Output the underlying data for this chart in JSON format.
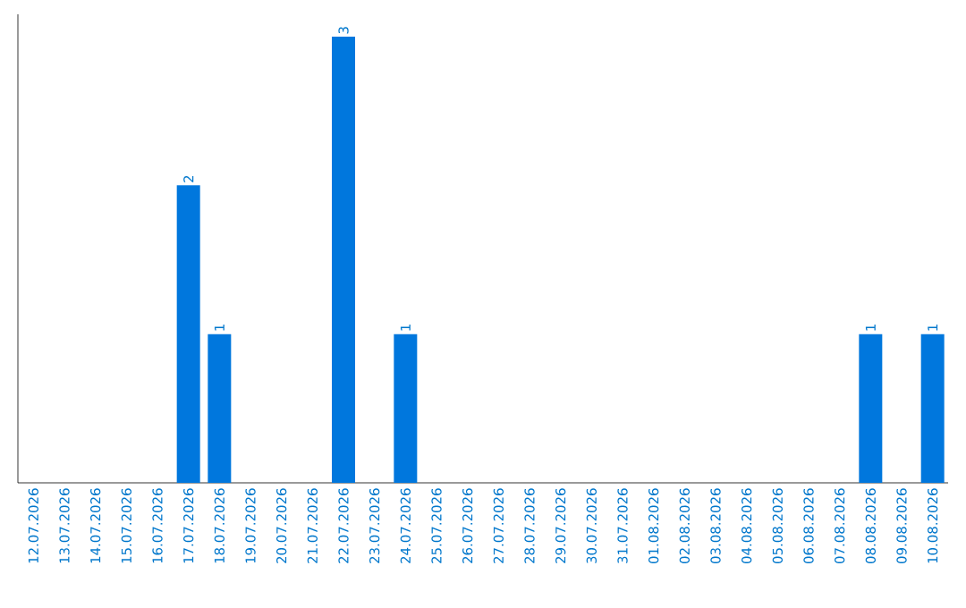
{
  "chart_data": {
    "type": "bar",
    "categories": [
      "12.07.2026",
      "13.07.2026",
      "14.07.2026",
      "15.07.2026",
      "16.07.2026",
      "17.07.2026",
      "18.07.2026",
      "19.07.2026",
      "20.07.2026",
      "21.07.2026",
      "22.07.2026",
      "23.07.2026",
      "24.07.2026",
      "25.07.2026",
      "26.07.2026",
      "27.07.2026",
      "28.07.2026",
      "29.07.2026",
      "30.07.2026",
      "31.07.2026",
      "01.08.2026",
      "02.08.2026",
      "03.08.2026",
      "04.08.2026",
      "05.08.2026",
      "06.08.2026",
      "07.08.2026",
      "08.08.2026",
      "09.08.2026",
      "10.08.2026"
    ],
    "values": [
      0,
      0,
      0,
      0,
      0,
      2,
      1,
      0,
      0,
      0,
      3,
      0,
      1,
      0,
      0,
      0,
      0,
      0,
      0,
      0,
      0,
      0,
      0,
      0,
      0,
      0,
      0,
      1,
      0,
      1
    ],
    "color": "#0077dd",
    "ylim": [
      0,
      3.15
    ],
    "value_labels": [
      null,
      null,
      null,
      null,
      null,
      "2",
      "1",
      null,
      null,
      null,
      "3",
      null,
      "1",
      null,
      null,
      null,
      null,
      null,
      null,
      null,
      null,
      null,
      null,
      null,
      null,
      null,
      null,
      "1",
      null,
      "1"
    ],
    "tick_labels": "x"
  }
}
